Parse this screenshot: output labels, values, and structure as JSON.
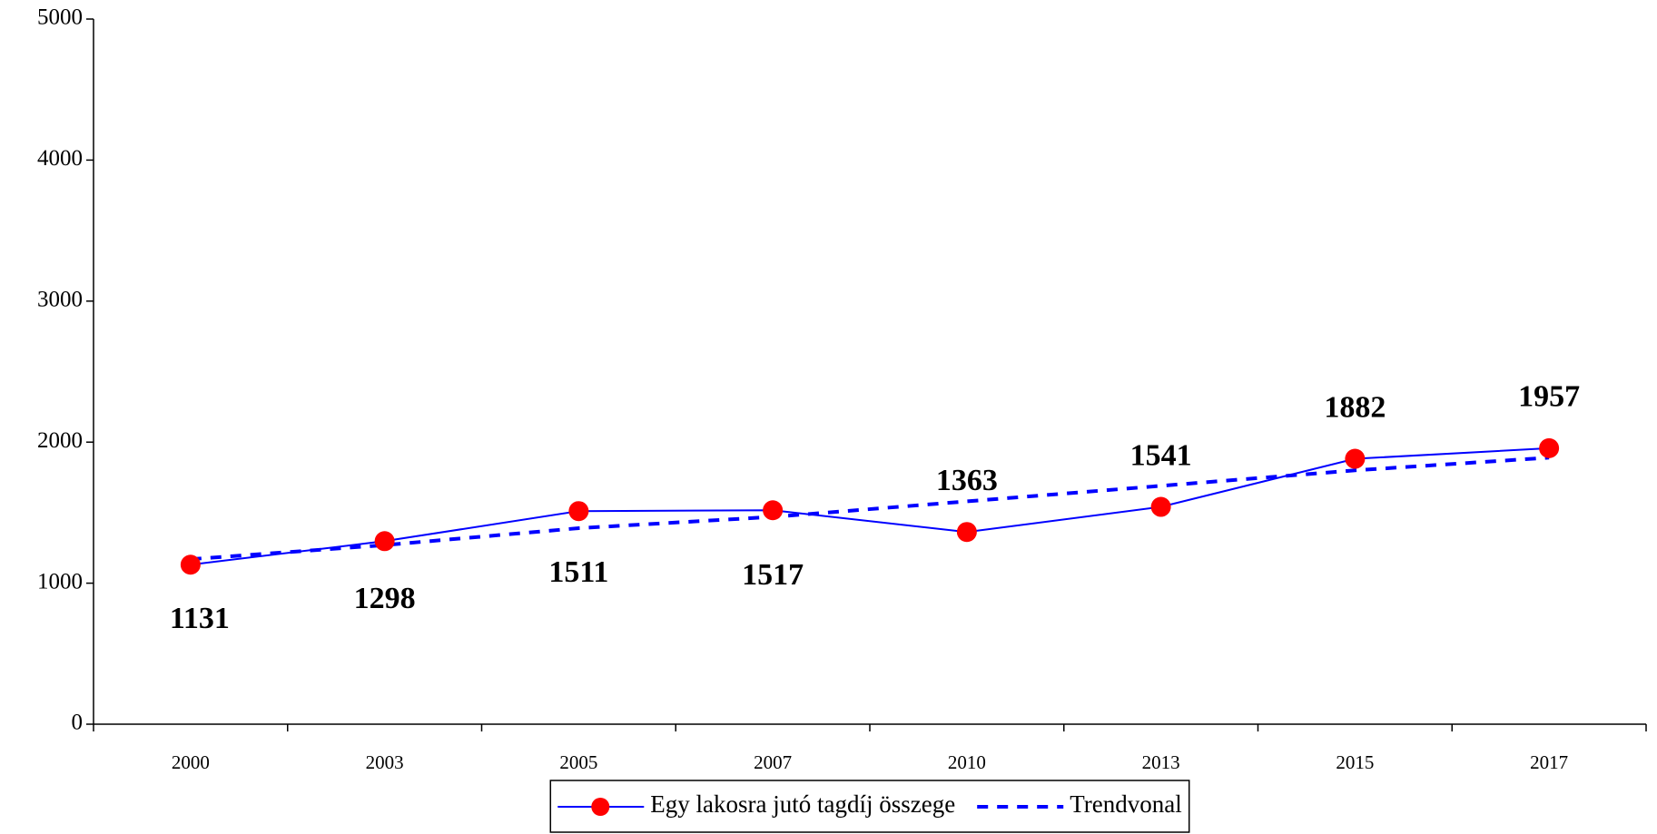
{
  "chart_data": {
    "type": "line",
    "categories": [
      "2000",
      "2003",
      "2005",
      "2007",
      "2010",
      "2013",
      "2015",
      "2017"
    ],
    "series": [
      {
        "name": "Egy lakosra jutó tagdíj összege",
        "color": "#0000ff",
        "marker_color": "#ff0000",
        "values": [
          1131,
          1298,
          1511,
          1517,
          1363,
          1541,
          1882,
          1957
        ]
      },
      {
        "name": "Trendvonal",
        "color": "#0000ff",
        "dashed": true,
        "values": [
          1170,
          1270,
          1390,
          1470,
          1580,
          1690,
          1800,
          1890
        ]
      }
    ],
    "ylim": [
      0,
      5000
    ],
    "yticks": [
      0,
      1000,
      2000,
      3000,
      4000,
      5000
    ],
    "grid": false,
    "legend": "bottom"
  }
}
